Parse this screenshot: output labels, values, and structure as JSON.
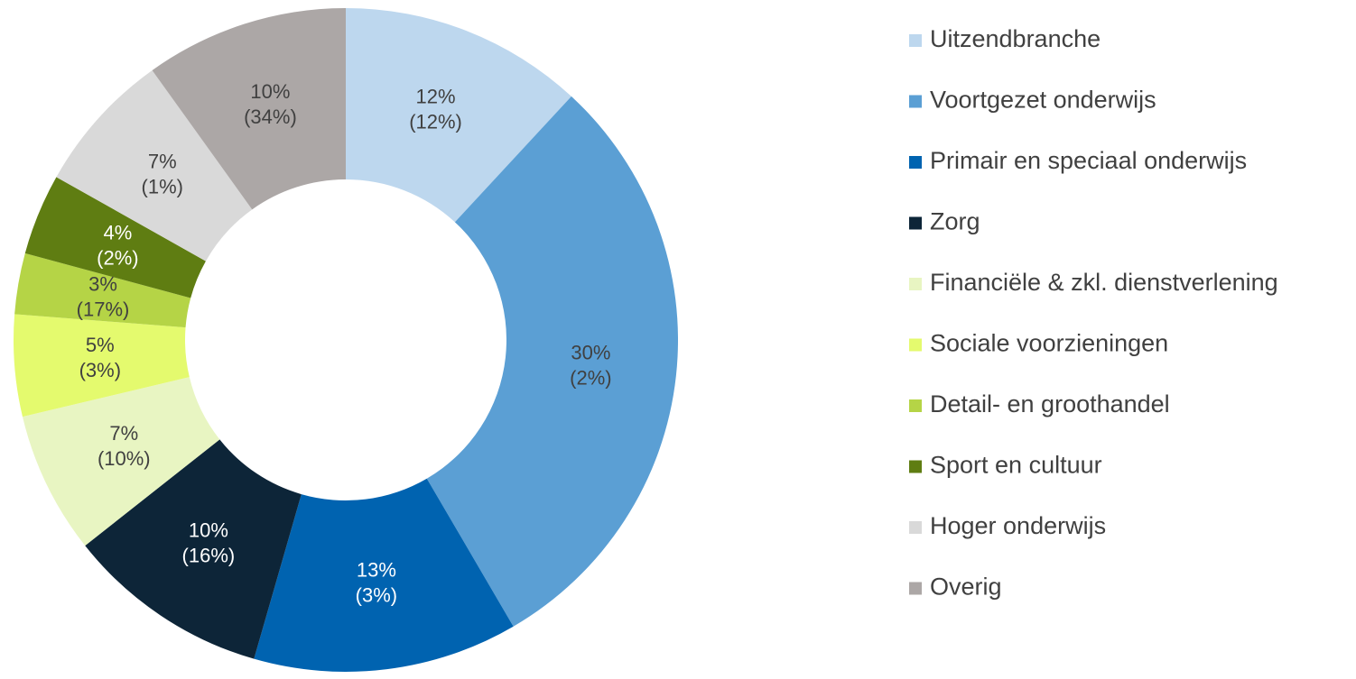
{
  "chart_data": {
    "type": "donut",
    "categories": [
      "Uitzendbranche",
      "Voortgezet onderwijs",
      "Primair en speciaal onderwijs",
      "Zorg",
      "Financiële & zkl. dienstverlening",
      "Sociale voorzieningen",
      "Detail- en groothandel",
      "Sport en cultuur",
      "Hoger onderwijs",
      "Overig"
    ],
    "values": [
      12,
      30,
      13,
      10,
      7,
      5,
      3,
      4,
      7,
      10
    ],
    "value_labels": [
      "12%",
      "30%",
      "13%",
      "10%",
      "7%",
      "5%",
      "3%",
      "4%",
      "7%",
      "10%"
    ],
    "values2": [
      12,
      2,
      3,
      16,
      10,
      3,
      17,
      2,
      1,
      34
    ],
    "value2_labels": [
      "(12%)",
      "(2%)",
      "(3%)",
      "(16%)",
      "(10%)",
      "(3%)",
      "(17%)",
      "(2%)",
      "(1%)",
      "(34%)"
    ],
    "colors": [
      "#bdd7ee",
      "#5b9fd4",
      "#0063b0",
      "#0d2538",
      "#e8f5c2",
      "#e4fa6e",
      "#b5d446",
      "#5f7d12",
      "#d9d9d9",
      "#aca7a6"
    ],
    "legend": "right"
  }
}
